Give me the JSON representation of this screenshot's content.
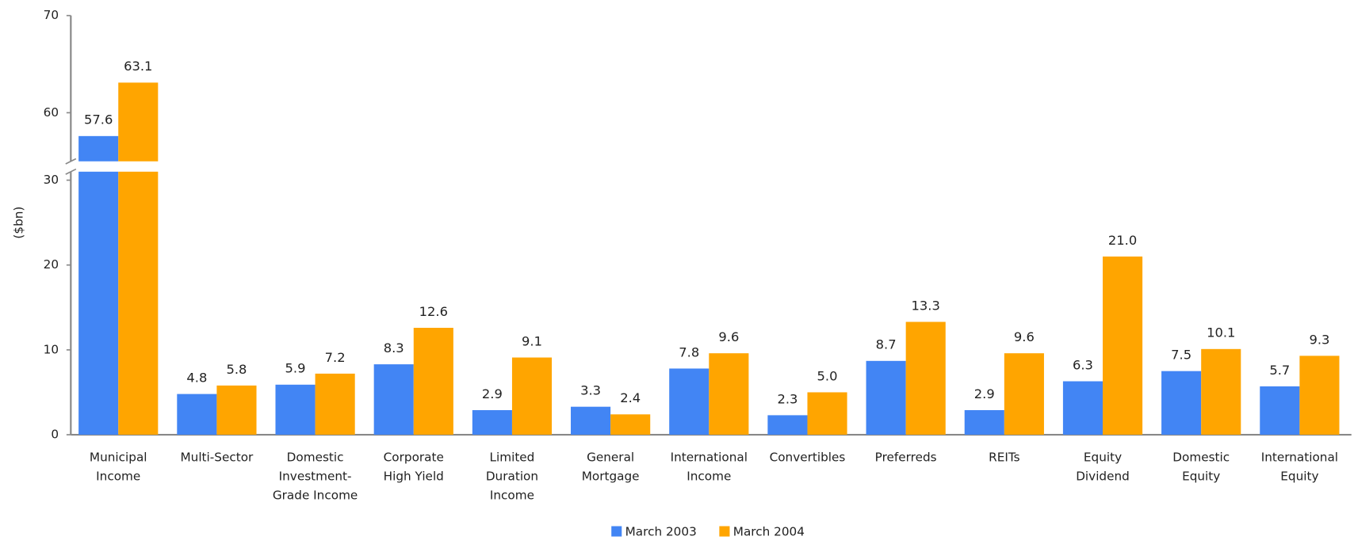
{
  "chart_data": {
    "type": "bar",
    "y_label": "($bn)",
    "categories": [
      "Municipal Income",
      "Multi-Sector",
      "Domestic Investment-Grade Income",
      "Corporate High Yield",
      "Limited Duration Income",
      "General Mortgage",
      "International Income",
      "Convertibles",
      "Preferreds",
      "REITs",
      "Equity Dividend",
      "Domestic Equity",
      "International Equity"
    ],
    "series": [
      {
        "name": "March 2003",
        "color": "#4285f4",
        "values": [
          57.6,
          4.8,
          5.9,
          8.3,
          2.9,
          3.3,
          7.8,
          2.3,
          8.7,
          2.9,
          6.3,
          7.5,
          5.7
        ],
        "value_labels": [
          "57.6",
          "4.8",
          "5.9",
          "8.3",
          "2.9",
          "3.3",
          "7.8",
          "2.3",
          "8.7",
          "2.9",
          "6.3",
          "7.5",
          "5.7"
        ]
      },
      {
        "name": "March 2004",
        "color": "#ffa500",
        "values": [
          63.1,
          5.8,
          7.2,
          12.6,
          9.1,
          2.4,
          9.6,
          5.0,
          13.3,
          9.6,
          21.0,
          10.1,
          9.3
        ],
        "value_labels": [
          "63.1",
          "5.8",
          "7.2",
          "12.6",
          "9.1",
          "2.4",
          "9.6",
          "5.0",
          "13.3",
          "9.6",
          "21.0",
          "10.1",
          "9.3"
        ]
      }
    ],
    "ylim": [
      0,
      70
    ],
    "axis_break": [
      31,
      55
    ],
    "yticks": [
      0,
      10,
      20,
      30,
      60,
      70
    ],
    "legend": "bottom"
  }
}
